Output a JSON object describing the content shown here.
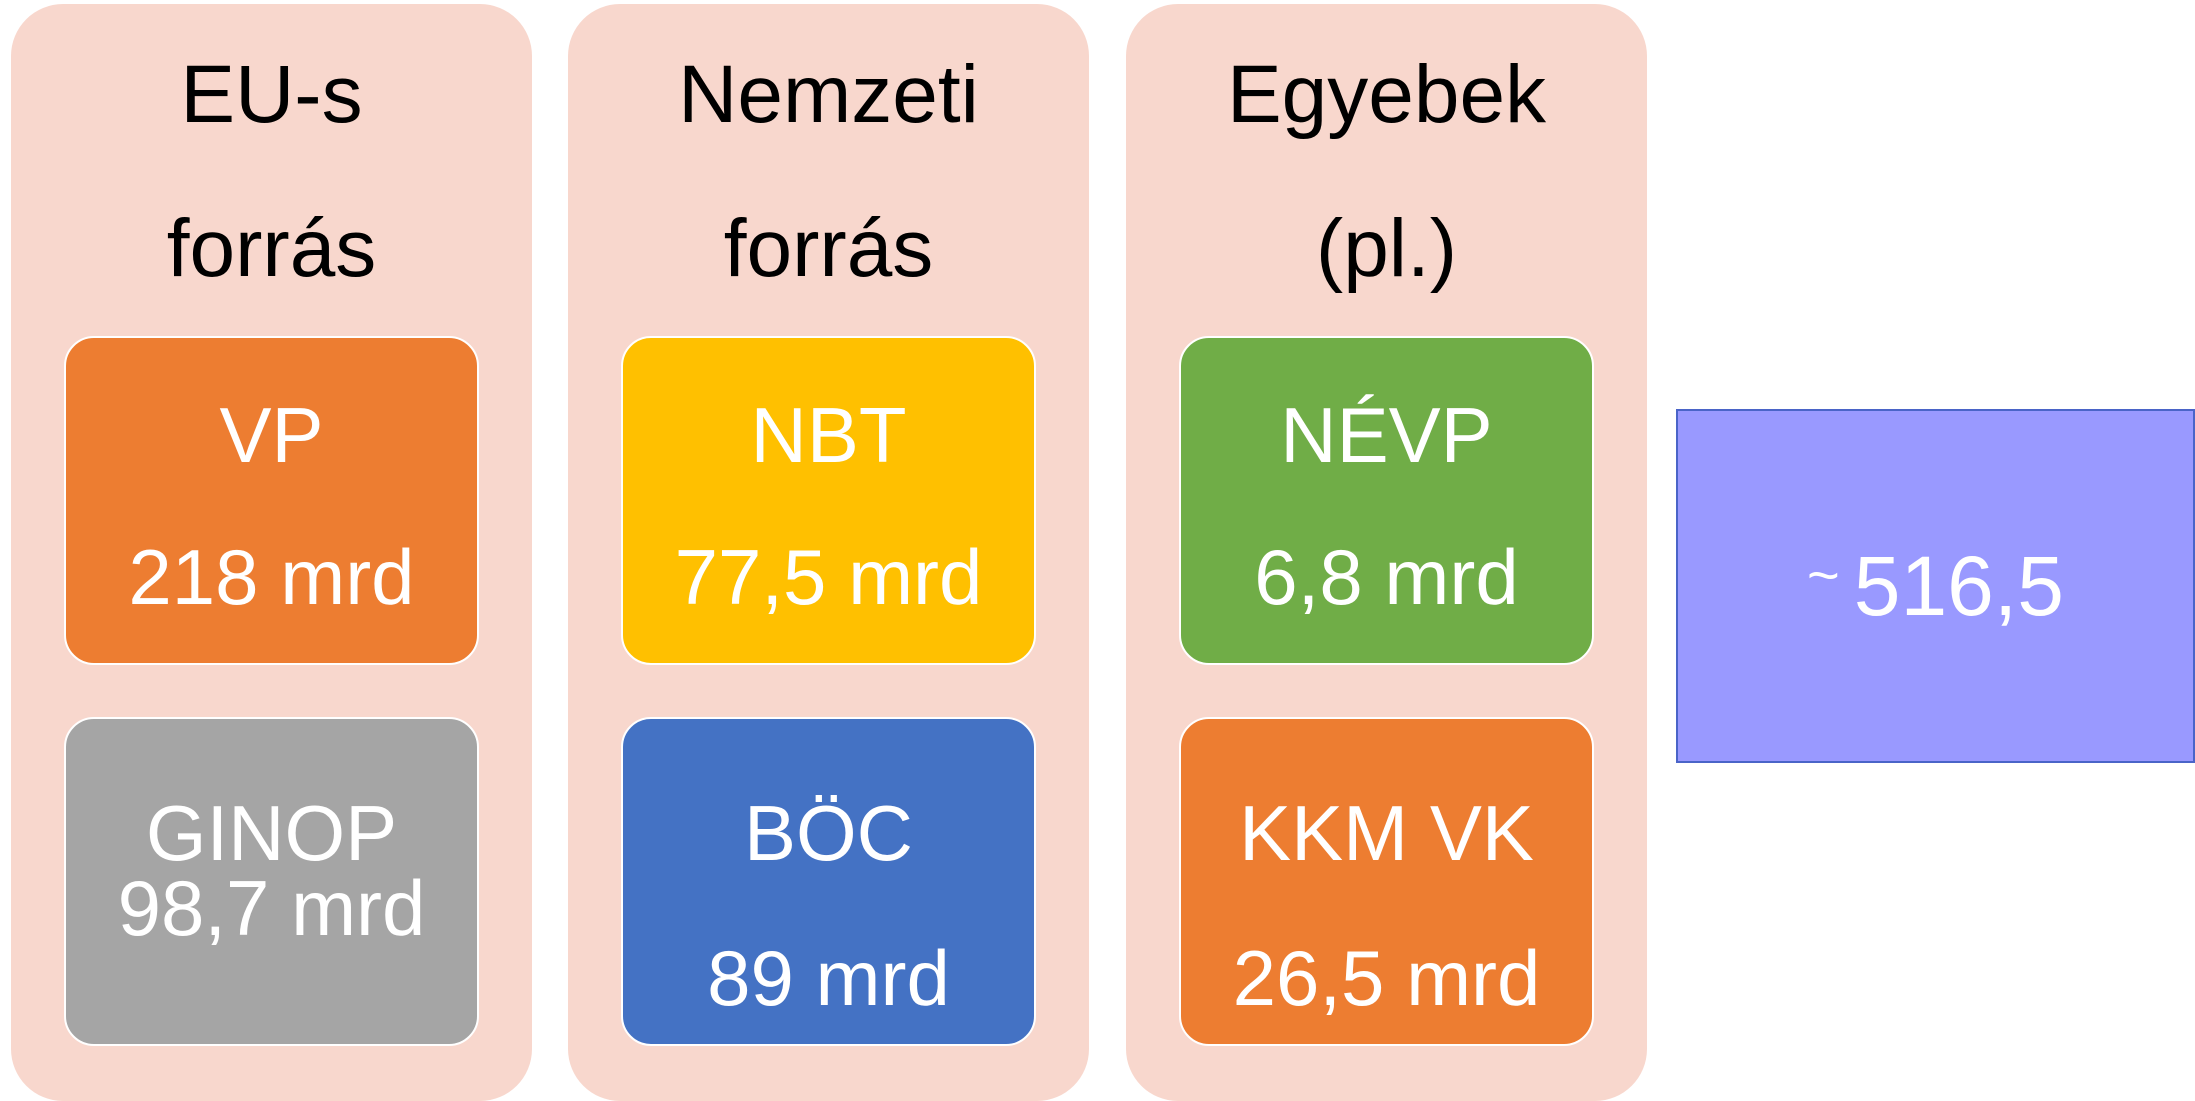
{
  "columns": [
    {
      "title_lines": [
        "EU-s",
        "forrás"
      ],
      "items": [
        {
          "name": "VP",
          "amount": "218 mrd",
          "color": "#ed7d31"
        },
        {
          "name": "GINOP",
          "amount": "98,7 mrd",
          "color": "#a5a5a5"
        }
      ]
    },
    {
      "title_lines": [
        "Nemzeti",
        "forrás"
      ],
      "items": [
        {
          "name": "NBT",
          "amount": "77,5 mrd",
          "color": "#ffc000"
        },
        {
          "name": "BÖC",
          "amount": "89 mrd",
          "color": "#4472c4"
        }
      ]
    },
    {
      "title_lines": [
        "Egyebek",
        "(pl.)"
      ],
      "items": [
        {
          "name": "NÉVP",
          "amount": "6,8 mrd",
          "color": "#70ad47"
        },
        {
          "name": "KKM VK",
          "amount": "26,5 mrd",
          "color": "#ed7d31"
        }
      ]
    }
  ],
  "total": {
    "symbol": "~",
    "amount": "516,5"
  }
}
